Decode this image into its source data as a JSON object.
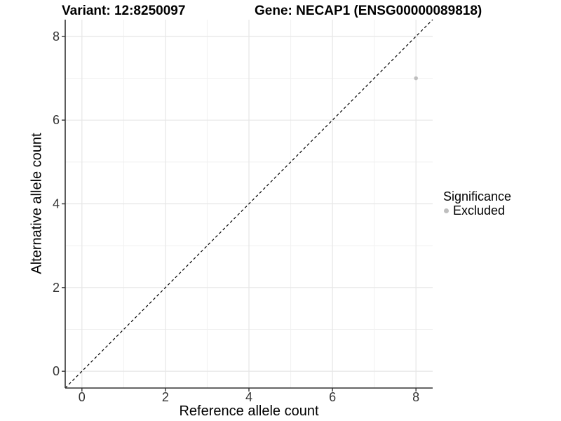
{
  "chart_data": {
    "type": "scatter",
    "title": "Variant: 12:8250097    Gene: NECAP1 (ENSG00000089818)",
    "title_parts": {
      "variant": "Variant: 12:8250097",
      "gene": "Gene: NECAP1 (ENSG00000089818)"
    },
    "xlabel": "Reference allele count",
    "ylabel": "Alternative allele count",
    "xlim": [
      -0.4,
      8.4
    ],
    "ylim": [
      -0.4,
      8.4
    ],
    "xticks": [
      0,
      2,
      4,
      6,
      8
    ],
    "yticks": [
      0,
      2,
      4,
      6,
      8
    ],
    "x_minor_ticks": [
      1,
      3,
      5,
      7
    ],
    "y_minor_ticks": [
      1,
      3,
      5,
      7
    ],
    "grid": "on",
    "identity_line": {
      "slope": 1,
      "intercept": 0,
      "style": "dashed",
      "color": "#000000"
    },
    "series": [
      {
        "name": "Excluded",
        "color": "#bebebe",
        "points": [
          {
            "x": 8,
            "y": 7
          }
        ]
      }
    ],
    "legend": {
      "title": "Significance",
      "position": "right",
      "entries": [
        {
          "label": "Excluded",
          "color": "#bebebe"
        }
      ]
    }
  },
  "colors": {
    "background": "#ffffff",
    "grid_major": "#e6e6e6",
    "grid_minor": "#f1f1f1",
    "axis_line": "#333333",
    "tick_text": "#333333",
    "title_text": "#000000",
    "point": "#bebebe"
  }
}
